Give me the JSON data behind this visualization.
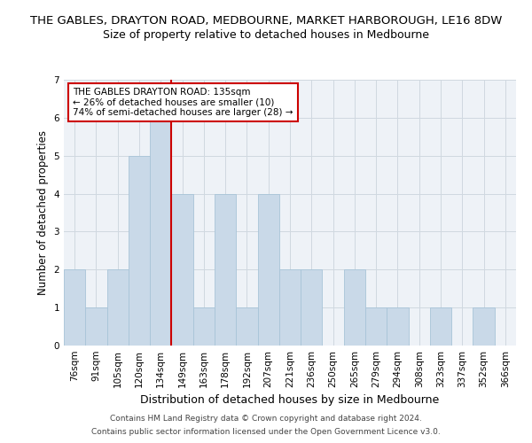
{
  "title": "THE GABLES, DRAYTON ROAD, MEDBOURNE, MARKET HARBOROUGH, LE16 8DW",
  "subtitle": "Size of property relative to detached houses in Medbourne",
  "xlabel": "Distribution of detached houses by size in Medbourne",
  "ylabel": "Number of detached properties",
  "footer1": "Contains HM Land Registry data © Crown copyright and database right 2024.",
  "footer2": "Contains public sector information licensed under the Open Government Licence v3.0.",
  "bins": [
    "76sqm",
    "91sqm",
    "105sqm",
    "120sqm",
    "134sqm",
    "149sqm",
    "163sqm",
    "178sqm",
    "192sqm",
    "207sqm",
    "221sqm",
    "236sqm",
    "250sqm",
    "265sqm",
    "279sqm",
    "294sqm",
    "308sqm",
    "323sqm",
    "337sqm",
    "352sqm",
    "366sqm"
  ],
  "counts": [
    2,
    1,
    2,
    5,
    6,
    4,
    1,
    4,
    1,
    4,
    2,
    2,
    0,
    2,
    1,
    1,
    0,
    1,
    0,
    1,
    0
  ],
  "subject_bin_index": 4,
  "bar_color": "#c9d9e8",
  "bar_edge_color": "#a8c4d8",
  "redline_color": "#cc0000",
  "annotation_line1": "THE GABLES DRAYTON ROAD: 135sqm",
  "annotation_line2": "← 26% of detached houses are smaller (10)",
  "annotation_line3": "74% of semi-detached houses are larger (28) →",
  "annotation_box_color": "#ffffff",
  "annotation_box_edge": "#cc0000",
  "ylim": [
    0,
    7
  ],
  "yticks": [
    0,
    1,
    2,
    3,
    4,
    5,
    6,
    7
  ],
  "grid_color": "#d0d8e0",
  "bg_color": "#eef2f7",
  "title_fontsize": 9.5,
  "subtitle_fontsize": 9,
  "xlabel_fontsize": 9,
  "ylabel_fontsize": 8.5,
  "tick_fontsize": 7.5,
  "annotation_fontsize": 7.5,
  "footer_fontsize": 6.5
}
